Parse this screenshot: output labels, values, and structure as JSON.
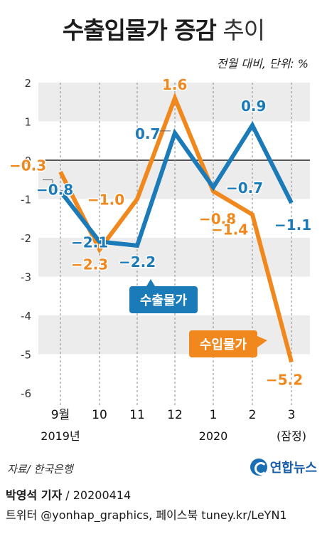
{
  "header": {
    "title_bold": "수출입물가 증감",
    "title_light": "추이",
    "unit": "전월 대비, 단위: %"
  },
  "chart_data": {
    "type": "line",
    "x_labels": [
      "9월",
      "10",
      "11",
      "12",
      "1",
      "2",
      "3"
    ],
    "x_sublabels": [
      "2019년",
      "",
      "",
      "",
      "2020",
      "",
      "(잠정)"
    ],
    "ylim": [
      -6,
      2
    ],
    "y_ticks": [
      2,
      1,
      0,
      -1,
      -2,
      -3,
      -4,
      -5,
      -6
    ],
    "grid": "alternating horizontal bands",
    "series": [
      {
        "name": "수출물가",
        "color": "#1b7ab8",
        "values": [
          -0.8,
          -2.1,
          -2.2,
          0.7,
          -0.7,
          0.9,
          -1.1
        ],
        "labels": [
          "-0.8",
          "-2.1",
          "-2.2",
          "0.7",
          "-0.7",
          "0.9",
          "-1.1"
        ]
      },
      {
        "name": "수입물가",
        "color": "#f0881e",
        "values": [
          -0.3,
          -2.3,
          -1.0,
          1.6,
          -0.8,
          -1.4,
          -5.2
        ],
        "labels": [
          "-0.3",
          "-2.3",
          "-1.0",
          "1.6",
          "-0.8",
          "-1.4",
          "-5.2"
        ]
      }
    ]
  },
  "footer": {
    "source": "자료/ 한국은행",
    "logo_text": "연합뉴스",
    "reporter": "박영석 기자",
    "date": "20200414",
    "twitter": "트위터 @yonhap_graphics, 페이스북 tuney.kr/LeYN1"
  }
}
